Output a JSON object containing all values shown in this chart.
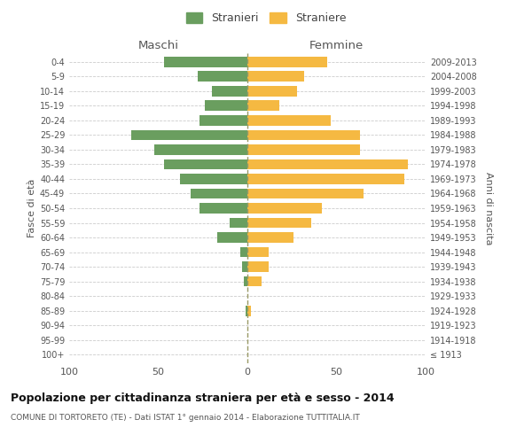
{
  "age_groups": [
    "100+",
    "95-99",
    "90-94",
    "85-89",
    "80-84",
    "75-79",
    "70-74",
    "65-69",
    "60-64",
    "55-59",
    "50-54",
    "45-49",
    "40-44",
    "35-39",
    "30-34",
    "25-29",
    "20-24",
    "15-19",
    "10-14",
    "5-9",
    "0-4"
  ],
  "birth_years": [
    "≤ 1913",
    "1914-1918",
    "1919-1923",
    "1924-1928",
    "1929-1933",
    "1934-1938",
    "1939-1943",
    "1944-1948",
    "1949-1953",
    "1954-1958",
    "1959-1963",
    "1964-1968",
    "1969-1973",
    "1974-1978",
    "1979-1983",
    "1984-1988",
    "1989-1993",
    "1994-1998",
    "1999-2003",
    "2004-2008",
    "2009-2013"
  ],
  "males": [
    0,
    0,
    0,
    1,
    0,
    2,
    3,
    4,
    17,
    10,
    27,
    32,
    38,
    47,
    52,
    65,
    27,
    24,
    20,
    28,
    47
  ],
  "females": [
    0,
    0,
    0,
    2,
    0,
    8,
    12,
    12,
    26,
    36,
    42,
    65,
    88,
    90,
    63,
    63,
    47,
    18,
    28,
    32,
    45
  ],
  "male_color": "#6a9e5f",
  "female_color": "#f5b942",
  "background_color": "#ffffff",
  "grid_color": "#cccccc",
  "title": "Popolazione per cittadinanza straniera per età e sesso - 2014",
  "subtitle": "COMUNE DI TORTORETO (TE) - Dati ISTAT 1° gennaio 2014 - Elaborazione TUTTITALIA.IT",
  "xlabel_left": "Maschi",
  "xlabel_right": "Femmine",
  "ylabel_left": "Fasce di età",
  "ylabel_right": "Anni di nascita",
  "legend_male": "Stranieri",
  "legend_female": "Straniere",
  "xlim": 100,
  "dashed_line_color": "#999966"
}
